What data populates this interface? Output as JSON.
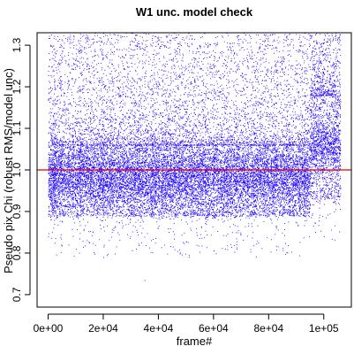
{
  "chart_data": {
    "type": "scatter",
    "title": "W1 unc. model check",
    "xlabel": "frame#",
    "ylabel": "Pseudo pix Chi (robust RMS/model unc)",
    "xlim": [
      -4000,
      110000
    ],
    "ylim": [
      0.67,
      1.33
    ],
    "x_ticks": [
      0,
      20000,
      40000,
      60000,
      80000,
      100000
    ],
    "x_tick_labels": [
      "0e+00",
      "2e+04",
      "4e+04",
      "6e+04",
      "8e+04",
      "1e+05"
    ],
    "y_ticks": [
      0.7,
      0.8,
      0.9,
      1.0,
      1.1,
      1.2,
      1.3
    ],
    "y_tick_labels": [
      "0.7",
      "0.8",
      "0.9",
      "1.0",
      "1.1",
      "1.2",
      "1.3"
    ],
    "reference_line": {
      "y": 1.0,
      "color": "#e00000"
    },
    "point_color": "#1a00ff",
    "x_data_range": [
      0,
      106000
    ],
    "segments": [
      {
        "x_range": [
          0,
          95000
        ],
        "band_low": 0.89,
        "band_high": 1.06,
        "center": 0.985
      },
      {
        "x_range": [
          95000,
          106000
        ],
        "band_low": 0.93,
        "band_high": 1.18,
        "center": 1.06
      }
    ],
    "outliers": [
      {
        "x": 35000,
        "y": 0.735
      }
    ],
    "grid": false
  }
}
